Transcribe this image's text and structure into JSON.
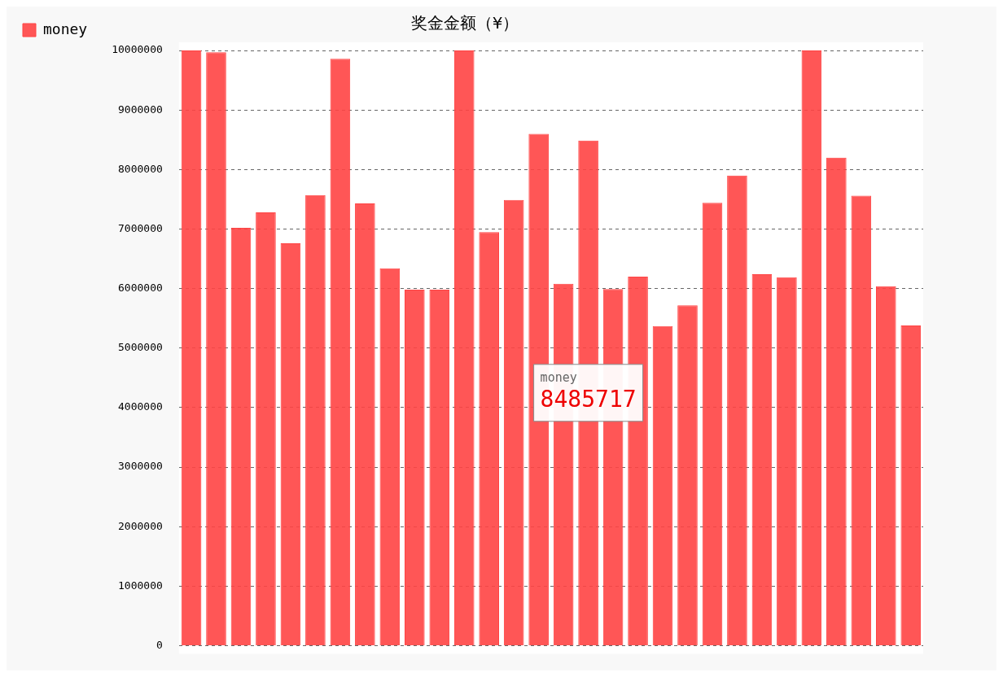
{
  "chart_data": {
    "type": "bar",
    "title": "奖金金额（¥）",
    "categories": [
      null,
      null,
      null,
      null,
      null,
      null,
      null,
      null,
      null,
      null,
      null,
      null,
      null,
      null,
      null,
      null,
      null,
      null,
      null,
      null,
      null,
      null,
      null,
      null,
      null,
      null,
      null,
      null,
      null,
      null
    ],
    "series": [
      {
        "name": "money",
        "color": "#ff4444",
        "values": [
          10000000,
          9970000,
          7020000,
          7280000,
          6760000,
          7570000,
          9860000,
          7430000,
          6340000,
          5980000,
          5980000,
          10000000,
          6950000,
          7490000,
          8600000,
          6080000,
          8485717,
          5990000,
          6200000,
          5370000,
          5720000,
          7440000,
          7900000,
          6240000,
          6190000,
          10000000,
          8200000,
          7560000,
          6040000,
          5380000
        ],
        "value_labels": [
          null,
          null,
          null,
          null,
          null,
          null,
          null,
          null,
          null,
          null,
          null,
          null,
          null,
          null,
          null,
          null,
          "8485717",
          null,
          null,
          null,
          null,
          null,
          null,
          null,
          null,
          null,
          null,
          null,
          null,
          null
        ]
      }
    ],
    "ylim": [
      0,
      10000000
    ],
    "yticks": [
      0,
      1000000,
      2000000,
      3000000,
      4000000,
      5000000,
      6000000,
      7000000,
      8000000,
      9000000,
      10000000
    ],
    "grid": "y",
    "legend": "top left"
  }
}
